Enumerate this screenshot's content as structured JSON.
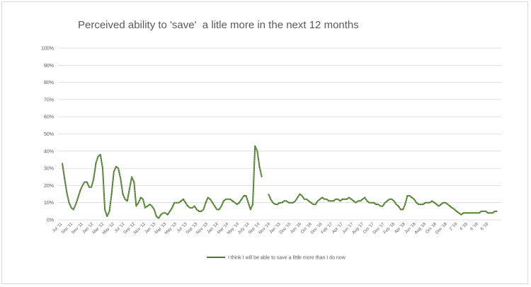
{
  "chart_data": {
    "type": "line",
    "title": "Perceived ability to 'save'  a litle more in the next 12 months",
    "xlabel": "",
    "ylabel": "",
    "ylim": [
      0,
      100
    ],
    "yticks": [
      "0%",
      "10%",
      "20%",
      "30%",
      "40%",
      "50%",
      "60%",
      "70%",
      "80%",
      "90%",
      "100%"
    ],
    "grid": true,
    "legend_position": "bottom",
    "color": "#4a7a2a",
    "x_tick_labels": [
      "Jul '11",
      "Sep '11",
      "Nov '11",
      "Jan '12",
      "Mar '12",
      "May '12",
      "Jul '12",
      "Sep '12",
      "Nov '12",
      "Jan '13",
      "Mar '13",
      "May '13",
      "Jul '13",
      "Sep '13",
      "Nov '13",
      "Jan '14",
      "Mar '14",
      "May '14",
      "July '14",
      "Sep '14",
      "Nov '14",
      "Jan '15",
      "Dec '15",
      "Jun '16",
      "Oct '16",
      "Dec '16",
      "Feb '17",
      "Apr '17",
      "Jun '17",
      "Aug '17",
      "Oct '17",
      "Dec '17",
      "Feb '18",
      "Apr '18",
      "Jun '18",
      "Aug '18",
      "Oct '18",
      "Dec '18",
      "2 '19",
      "4 '19",
      "6 '19",
      "8 '19"
    ],
    "series": [
      {
        "name": "I think I will be able to save a little more than I do now",
        "segments": [
          [
            33,
            24,
            16,
            10,
            7,
            6,
            9,
            13,
            17,
            20,
            22,
            22,
            19,
            19,
            24,
            33,
            37,
            38,
            30,
            6,
            2,
            5,
            15,
            28,
            31,
            30,
            24,
            15,
            12,
            11,
            18,
            25,
            22,
            8,
            10,
            13,
            12,
            7,
            8,
            9,
            8,
            6,
            2,
            1,
            3,
            4,
            4,
            3,
            5,
            7,
            10,
            10,
            10,
            11,
            12,
            10,
            8,
            7,
            7,
            8,
            6,
            5,
            5,
            6,
            10,
            13,
            12,
            10,
            8,
            6,
            6,
            8,
            11,
            12,
            12,
            12,
            11,
            10,
            9,
            10,
            12,
            14,
            14,
            10,
            6,
            9,
            43,
            40,
            31,
            25
          ],
          [
            15,
            12,
            10,
            9,
            9,
            10,
            10,
            11,
            11,
            10,
            10,
            10,
            11,
            13,
            15,
            14,
            12,
            12,
            11,
            10,
            9,
            9,
            11,
            12,
            13,
            12,
            12,
            11,
            11,
            11,
            12,
            12,
            11,
            12,
            12,
            12,
            13,
            12,
            11,
            10,
            11,
            11,
            12,
            13,
            11,
            10,
            10,
            10,
            9,
            9,
            8,
            8,
            10,
            11,
            12,
            12,
            11,
            9,
            8,
            6,
            6,
            9,
            14,
            14,
            13,
            12,
            10,
            9,
            9,
            9,
            10,
            10,
            10,
            11,
            10,
            9,
            8,
            9,
            10,
            10,
            9,
            8,
            7,
            6,
            5,
            4,
            3,
            4,
            4,
            4,
            4,
            4,
            4,
            4,
            4,
            5,
            5,
            5,
            4,
            4,
            4,
            5,
            5
          ]
        ]
      }
    ]
  }
}
